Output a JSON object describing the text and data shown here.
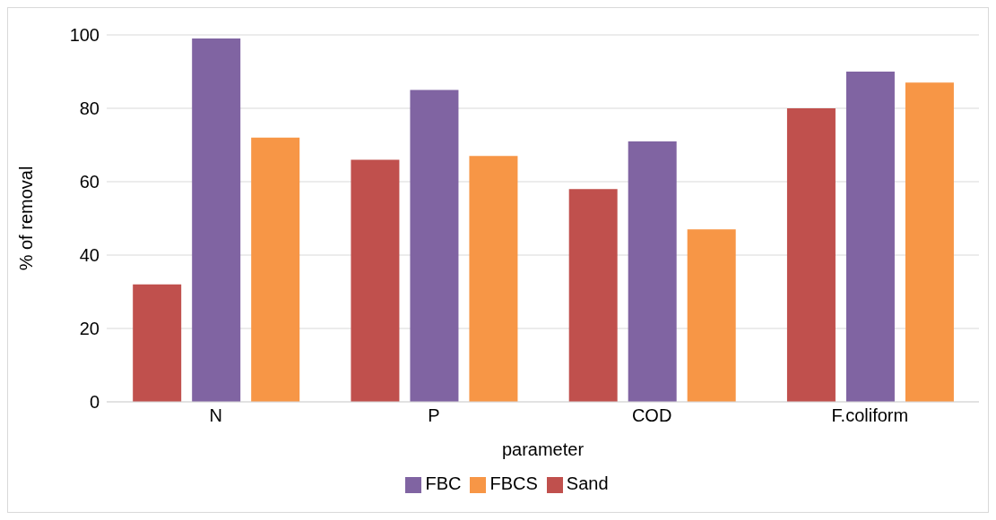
{
  "chart_data": {
    "type": "bar",
    "xlabel": "parameter",
    "ylabel": "% of removal",
    "categories": [
      "N",
      "P",
      "COD",
      "F.coliform"
    ],
    "series": [
      {
        "name": "Sand",
        "color": "#c0504d",
        "values": [
          32,
          66,
          58,
          80
        ]
      },
      {
        "name": "FBC",
        "color": "#8064a2",
        "values": [
          99,
          85,
          71,
          90
        ]
      },
      {
        "name": "FBCS",
        "color": "#f79646",
        "values": [
          72,
          67,
          47,
          87
        ]
      }
    ],
    "ylim": [
      0,
      100
    ],
    "yticks": [
      0,
      20,
      40,
      60,
      80,
      100
    ],
    "grid": "y",
    "legend": "bottom"
  }
}
